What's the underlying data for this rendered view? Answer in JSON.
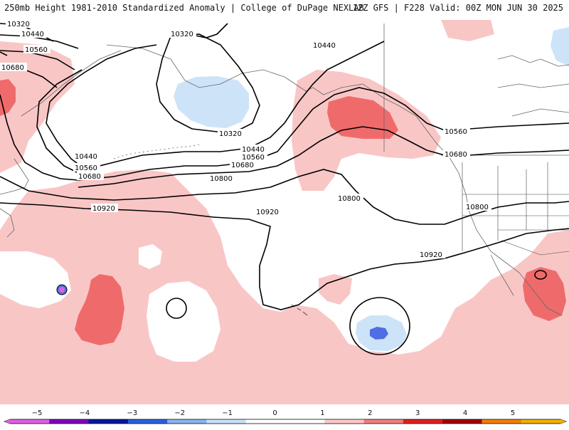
{
  "header": {
    "title": "250mb Height 1981-2010 Standardized Anomaly | College of DuPage NEXLAB",
    "run_info": "12Z GFS | F228 Valid: 00Z MON JUN 30 2025"
  },
  "contour_labels": {
    "c10320_a": "10320",
    "c10320_b": "10320",
    "c10320_c": "10320",
    "c10440_a": "10440",
    "c10440_b": "10440",
    "c10440_c": "10440",
    "c10440_d": "10440",
    "c10560_a": "10560",
    "c10560_b": "10560",
    "c10560_c": "10560",
    "c10560_d": "10560",
    "c10680_a": "10680",
    "c10680_b": "10680",
    "c10680_c": "10680",
    "c10680_d": "10680",
    "c10800_a": "10800",
    "c10800_b": "10800",
    "c10800_c": "10800",
    "c10920_a": "10920",
    "c10920_b": "10920",
    "c10920_c": "10920"
  },
  "colorbar": {
    "labels": [
      "−5",
      "−4",
      "−3",
      "−2",
      "−1",
      "0",
      "1",
      "2",
      "3",
      "4",
      "5"
    ],
    "colors": [
      "#e060e0",
      "#8000c0",
      "#0018a0",
      "#2860e0",
      "#8ab4f0",
      "#c8e0f8",
      "#ffffff",
      "#ffffff",
      "#ffc8c8",
      "#f08080",
      "#e02020",
      "#a00000",
      "#f08000",
      "#f0b000"
    ]
  },
  "colors": {
    "anom_pos1": "#f9c6c6",
    "anom_pos2": "#ef6b6b",
    "anom_neg1": "#cde3f8",
    "anom_neg2": "#4f6ee6",
    "contour": "#000000",
    "coast": "#555555"
  }
}
